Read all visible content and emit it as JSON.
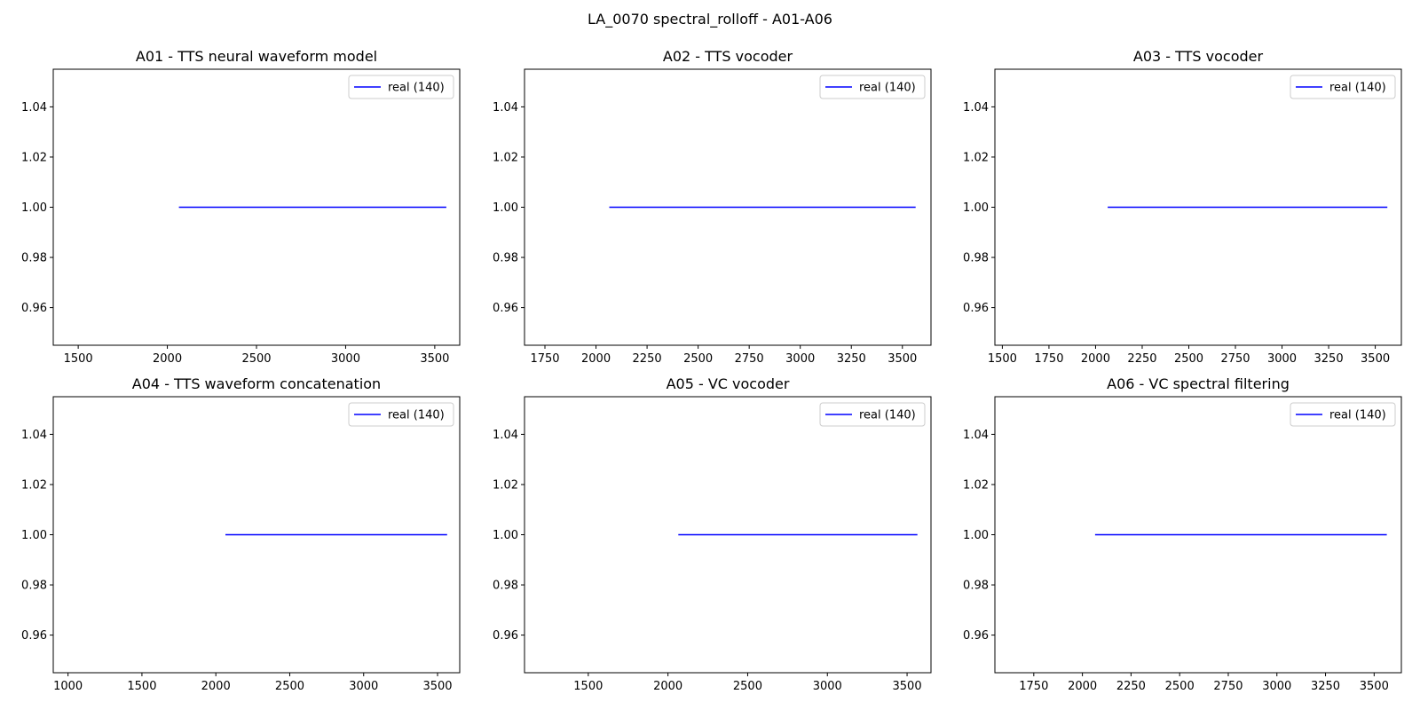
{
  "figure_title": "LA_0070 spectral_rolloff - A01-A06",
  "chart_data": [
    {
      "type": "line",
      "title": "A01 - TTS neural waveform model",
      "xlabel": "",
      "ylabel": "",
      "xlim": [
        1360,
        3640
      ],
      "ylim": [
        0.945,
        1.055
      ],
      "xticks": [
        1500,
        2000,
        2500,
        3000,
        3500
      ],
      "yticks": [
        0.96,
        0.98,
        1.0,
        1.02,
        1.04
      ],
      "grid": false,
      "legend_position": "top-right",
      "series": [
        {
          "name": "real (140)",
          "color": "#0000ff",
          "x": [
            2065,
            3565
          ],
          "y": [
            1.0,
            1.0
          ]
        }
      ]
    },
    {
      "type": "line",
      "title": "A02 - TTS vocoder",
      "xlabel": "",
      "ylabel": "",
      "xlim": [
        1650,
        3640
      ],
      "ylim": [
        0.945,
        1.055
      ],
      "xticks": [
        1750,
        2000,
        2250,
        2500,
        2750,
        3000,
        3250,
        3500
      ],
      "yticks": [
        0.96,
        0.98,
        1.0,
        1.02,
        1.04
      ],
      "grid": false,
      "legend_position": "top-right",
      "series": [
        {
          "name": "real (140)",
          "color": "#0000ff",
          "x": [
            2065,
            3565
          ],
          "y": [
            1.0,
            1.0
          ]
        }
      ]
    },
    {
      "type": "line",
      "title": "A03 - TTS vocoder",
      "xlabel": "",
      "ylabel": "",
      "xlim": [
        1460,
        3640
      ],
      "ylim": [
        0.945,
        1.055
      ],
      "xticks": [
        1500,
        1750,
        2000,
        2250,
        2500,
        2750,
        3000,
        3250,
        3500
      ],
      "yticks": [
        0.96,
        0.98,
        1.0,
        1.02,
        1.04
      ],
      "grid": false,
      "legend_position": "top-right",
      "series": [
        {
          "name": "real (140)",
          "color": "#0000ff",
          "x": [
            2065,
            3565
          ],
          "y": [
            1.0,
            1.0
          ]
        }
      ]
    },
    {
      "type": "line",
      "title": "A04 - TTS waveform concatenation",
      "xlabel": "",
      "ylabel": "",
      "xlim": [
        900,
        3650
      ],
      "ylim": [
        0.945,
        1.055
      ],
      "xticks": [
        1000,
        1500,
        2000,
        2500,
        3000,
        3500
      ],
      "yticks": [
        0.96,
        0.98,
        1.0,
        1.02,
        1.04
      ],
      "grid": false,
      "legend_position": "top-right",
      "series": [
        {
          "name": "real (140)",
          "color": "#0000ff",
          "x": [
            2065,
            3565
          ],
          "y": [
            1.0,
            1.0
          ]
        }
      ]
    },
    {
      "type": "line",
      "title": "A05 - VC vocoder",
      "xlabel": "",
      "ylabel": "",
      "xlim": [
        1100,
        3650
      ],
      "ylim": [
        0.945,
        1.055
      ],
      "xticks": [
        1500,
        2000,
        2500,
        3000,
        3500
      ],
      "yticks": [
        0.96,
        0.98,
        1.0,
        1.02,
        1.04
      ],
      "grid": false,
      "legend_position": "top-right",
      "series": [
        {
          "name": "real (140)",
          "color": "#0000ff",
          "x": [
            2065,
            3565
          ],
          "y": [
            1.0,
            1.0
          ]
        }
      ]
    },
    {
      "type": "line",
      "title": "A06 - VC spectral filtering",
      "xlabel": "",
      "ylabel": "",
      "xlim": [
        1550,
        3640
      ],
      "ylim": [
        0.945,
        1.055
      ],
      "xticks": [
        1750,
        2000,
        2250,
        2500,
        2750,
        3000,
        3250,
        3500
      ],
      "yticks": [
        0.96,
        0.98,
        1.0,
        1.02,
        1.04
      ],
      "grid": false,
      "legend_position": "top-right",
      "series": [
        {
          "name": "real (140)",
          "color": "#0000ff",
          "x": [
            2065,
            3565
          ],
          "y": [
            1.0,
            1.0
          ]
        }
      ]
    }
  ]
}
